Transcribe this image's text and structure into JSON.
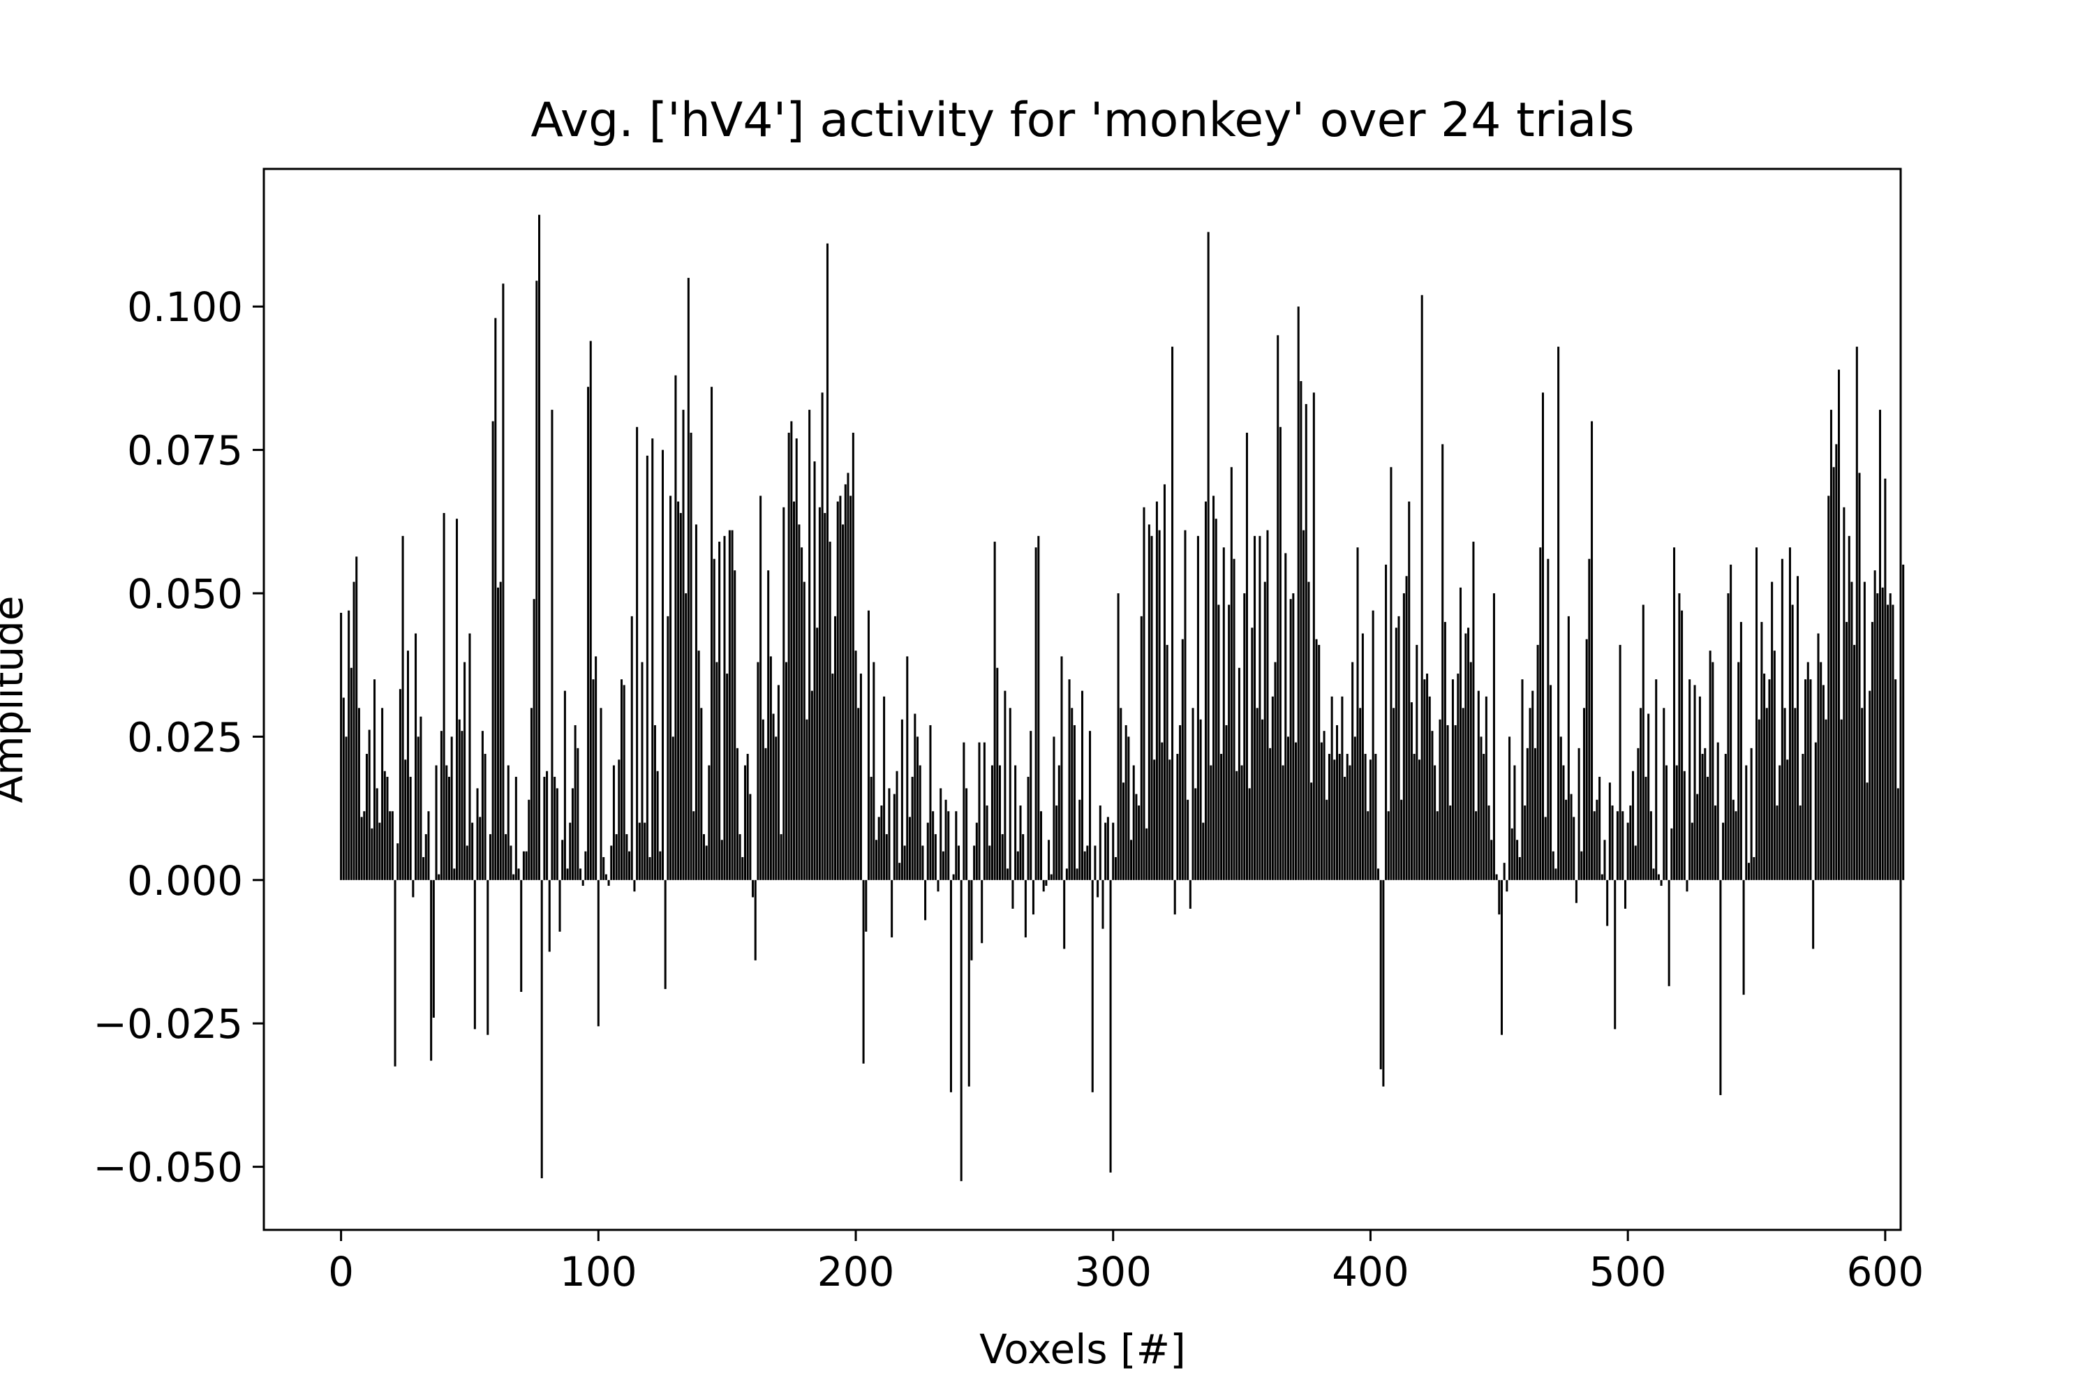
{
  "chart_data": {
    "type": "bar",
    "title": "Avg. ['hV4'] activity for 'monkey' over 24 trials",
    "xlabel": "Voxels [#]",
    "ylabel": "Amplitude",
    "xlim": [
      -30,
      606
    ],
    "ylim": [
      -0.061,
      0.124
    ],
    "xticks": [
      0,
      100,
      200,
      300,
      400,
      500,
      600
    ],
    "xtick_labels": [
      "0",
      "100",
      "200",
      "300",
      "400",
      "500",
      "600"
    ],
    "yticks": [
      -0.05,
      -0.025,
      0.0,
      0.025,
      0.05,
      0.075,
      0.1
    ],
    "ytick_labels": [
      "−0.050",
      "−0.025",
      "0.000",
      "0.025",
      "0.050",
      "0.075",
      "0.100"
    ],
    "grid": false,
    "bar_color": "#000000",
    "x_start": 0,
    "values": [
      0.0466,
      0.0318,
      0.025,
      0.047,
      0.037,
      0.052,
      0.0564,
      0.03,
      0.011,
      0.012,
      0.022,
      0.0262,
      0.009,
      0.035,
      0.016,
      0.01,
      0.03,
      0.019,
      0.018,
      0.012,
      0.012,
      -0.0325,
      0.0064,
      0.0333,
      0.06,
      0.021,
      0.04,
      0.018,
      -0.003,
      0.043,
      0.025,
      0.0285,
      0.004,
      0.008,
      0.012,
      -0.0315,
      -0.024,
      0.02,
      0.001,
      0.026,
      0.064,
      0.02,
      0.018,
      0.025,
      0.002,
      0.063,
      0.028,
      0.026,
      0.038,
      0.006,
      0.043,
      0.01,
      -0.026,
      0.016,
      0.011,
      0.026,
      0.022,
      -0.027,
      0.008,
      0.08,
      0.098,
      0.051,
      0.052,
      0.104,
      0.008,
      0.02,
      0.006,
      0.001,
      0.018,
      0.002,
      -0.0195,
      0.005,
      0.005,
      0.014,
      0.03,
      0.049,
      0.1045,
      0.116,
      -0.052,
      0.018,
      0.019,
      -0.0125,
      0.082,
      0.018,
      0.016,
      -0.009,
      0.007,
      0.033,
      0.002,
      0.01,
      0.016,
      0.027,
      0.023,
      0.002,
      -0.001,
      0.005,
      0.086,
      0.094,
      0.035,
      0.039,
      -0.0255,
      0.03,
      0.004,
      0.001,
      -0.001,
      0.006,
      0.02,
      0.008,
      0.021,
      0.035,
      0.034,
      0.008,
      0.005,
      0.046,
      -0.002,
      0.079,
      0.01,
      0.038,
      0.01,
      0.074,
      0.004,
      0.077,
      0.027,
      0.019,
      0.005,
      0.075,
      -0.019,
      0.046,
      0.067,
      0.025,
      0.088,
      0.066,
      0.064,
      0.082,
      0.05,
      0.105,
      0.078,
      0.012,
      0.062,
      0.04,
      0.03,
      0.008,
      0.006,
      0.02,
      0.086,
      0.056,
      0.038,
      0.059,
      0.007,
      0.06,
      0.036,
      0.061,
      0.061,
      0.054,
      0.023,
      0.008,
      0.004,
      0.02,
      0.022,
      0.015,
      -0.003,
      -0.014,
      0.038,
      0.067,
      0.028,
      0.023,
      0.054,
      0.039,
      0.029,
      0.025,
      0.034,
      0.008,
      0.065,
      0.038,
      0.078,
      0.08,
      0.066,
      0.077,
      0.062,
      0.058,
      0.052,
      0.028,
      0.082,
      0.033,
      0.073,
      0.044,
      0.065,
      0.085,
      0.064,
      0.111,
      0.059,
      0.036,
      0.046,
      0.066,
      0.067,
      0.062,
      0.069,
      0.071,
      0.067,
      0.078,
      0.04,
      0.03,
      0.036,
      -0.032,
      -0.009,
      0.047,
      0.018,
      0.038,
      0.007,
      0.011,
      0.013,
      0.032,
      0.008,
      0.016,
      -0.01,
      0.015,
      0.019,
      0.003,
      0.028,
      0.006,
      0.039,
      0.011,
      0.018,
      0.029,
      0.025,
      0.02,
      0.006,
      -0.007,
      0.01,
      0.027,
      0.012,
      0.008,
      -0.002,
      0.016,
      0.005,
      0.014,
      0.012,
      -0.037,
      0.001,
      0.012,
      0.006,
      -0.0525,
      0.024,
      0.016,
      -0.036,
      -0.014,
      0.006,
      0.01,
      0.024,
      -0.011,
      0.024,
      0.013,
      0.006,
      0.02,
      0.059,
      0.037,
      0.02,
      0.008,
      0.033,
      0.002,
      0.03,
      -0.005,
      0.02,
      0.005,
      0.013,
      0.008,
      -0.01,
      0.018,
      0.026,
      -0.006,
      0.058,
      0.06,
      0.012,
      -0.002,
      -0.001,
      0.007,
      0.001,
      0.025,
      0.013,
      0.02,
      0.039,
      -0.012,
      0.002,
      0.035,
      0.03,
      0.027,
      0.002,
      0.014,
      0.033,
      0.005,
      0.006,
      0.026,
      -0.037,
      0.006,
      -0.003,
      0.013,
      -0.0085,
      0.01,
      0.011,
      -0.051,
      0.01,
      0.004,
      0.05,
      0.03,
      0.017,
      0.027,
      0.025,
      0.007,
      0.02,
      0.015,
      0.013,
      0.046,
      0.065,
      0.009,
      0.062,
      0.06,
      0.021,
      0.066,
      0.061,
      0.024,
      0.069,
      0.041,
      0.021,
      0.093,
      -0.006,
      0.022,
      0.027,
      0.042,
      0.061,
      0.014,
      -0.005,
      0.03,
      0.016,
      0.06,
      0.028,
      0.01,
      0.066,
      0.113,
      0.02,
      0.067,
      0.063,
      0.048,
      0.022,
      0.058,
      0.027,
      0.048,
      0.072,
      0.056,
      0.019,
      0.037,
      0.02,
      0.05,
      0.078,
      0.016,
      0.044,
      0.06,
      0.03,
      0.06,
      0.028,
      0.052,
      0.061,
      0.023,
      0.032,
      0.038,
      0.095,
      0.079,
      0.02,
      0.057,
      0.025,
      0.049,
      0.05,
      0.024,
      0.1,
      0.087,
      0.061,
      0.083,
      0.052,
      0.017,
      0.085,
      0.042,
      0.041,
      0.024,
      0.026,
      0.014,
      0.022,
      0.032,
      0.021,
      0.027,
      0.022,
      0.032,
      0.018,
      0.022,
      0.02,
      0.038,
      0.025,
      0.058,
      0.03,
      0.043,
      0.022,
      0.012,
      0.021,
      0.047,
      0.022,
      0.002,
      -0.033,
      -0.036,
      0.055,
      0.012,
      0.072,
      0.03,
      0.044,
      0.046,
      0.014,
      0.05,
      0.053,
      0.066,
      0.031,
      0.022,
      0.041,
      0.021,
      0.102,
      0.035,
      0.036,
      0.032,
      0.026,
      0.02,
      0.012,
      0.028,
      0.076,
      0.045,
      0.027,
      0.013,
      0.035,
      0.027,
      0.036,
      0.051,
      0.03,
      0.043,
      0.044,
      0.038,
      0.059,
      0.012,
      0.033,
      0.025,
      0.022,
      0.032,
      0.013,
      0.007,
      0.05,
      0.001,
      -0.006,
      -0.027,
      0.003,
      -0.002,
      0.025,
      0.009,
      0.02,
      0.007,
      0.004,
      0.035,
      0.013,
      0.023,
      0.03,
      0.033,
      0.023,
      0.041,
      0.058,
      0.085,
      0.011,
      0.056,
      0.034,
      0.005,
      0.002,
      0.093,
      0.025,
      0.02,
      0.014,
      0.046,
      0.015,
      0.011,
      -0.004,
      0.023,
      0.005,
      0.03,
      0.042,
      0.056,
      0.08,
      0.012,
      0.014,
      0.018,
      0.001,
      0.007,
      -0.008,
      0.017,
      0.013,
      -0.026,
      0.012,
      0.041,
      0.012,
      -0.005,
      0.01,
      0.013,
      0.019,
      0.006,
      0.023,
      0.03,
      0.048,
      0.018,
      0.029,
      0.012,
      0.002,
      0.035,
      0.001,
      -0.001,
      0.03,
      0.02,
      -0.0185,
      0.009,
      0.058,
      0.02,
      0.05,
      0.047,
      0.019,
      -0.002,
      0.035,
      0.01,
      0.034,
      0.015,
      0.032,
      0.022,
      0.023,
      0.018,
      0.04,
      0.038,
      0.013,
      0.024,
      -0.0375,
      0.01,
      0.022,
      0.05,
      0.055,
      0.014,
      0.012,
      0.038,
      0.045,
      -0.02,
      0.02,
      0.003,
      0.023,
      0.004,
      0.058,
      0.028,
      0.045,
      0.036,
      0.03,
      0.035,
      0.052,
      0.04,
      0.013,
      0.02,
      0.056,
      0.03,
      0.021,
      0.058,
      0.048,
      0.03,
      0.053,
      0.013,
      0.022,
      0.035,
      0.038,
      0.035,
      -0.012,
      0.024,
      0.043,
      0.038,
      0.034,
      0.028,
      0.067,
      0.082,
      0.072,
      0.076,
      0.089,
      0.028,
      0.065,
      0.045,
      0.06,
      0.052,
      0.041,
      0.093,
      0.071,
      0.03,
      0.052,
      0.017,
      0.033,
      0.045,
      0.054,
      0.05,
      0.082,
      0.051,
      0.07,
      0.048,
      0.05,
      0.048,
      0.035,
      0.016,
      0.032,
      0.055
    ]
  },
  "x_title": "Voxels [#]"
}
